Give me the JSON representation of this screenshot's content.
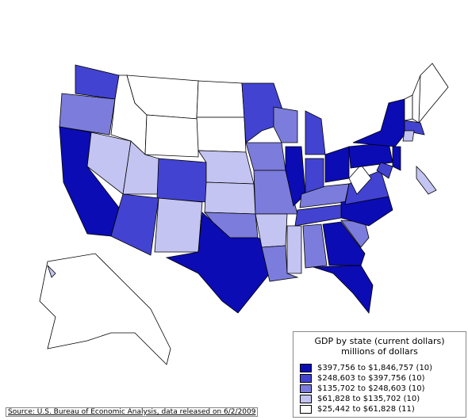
{
  "legend": {
    "title": "GDP by state (current dollars)",
    "subtitle": "millions of dollars",
    "items": [
      {
        "label": "$397,756 to $1,846,757 (10)",
        "color": "#0c0cb4"
      },
      {
        "label": "$248,603 to $397,756 (10)",
        "color": "#4343d2"
      },
      {
        "label": "$135,702 to $248,603 (10)",
        "color": "#7c7cdc"
      },
      {
        "label": "$61,828 to $135,702 (10)",
        "color": "#c4c4f2"
      },
      {
        "label": "$25,442 to $61,828 (11)",
        "color": "#ffffff"
      }
    ]
  },
  "source": "Source: U.S. Bureau of Economic Analysis, data released on 6/2/2009"
}
